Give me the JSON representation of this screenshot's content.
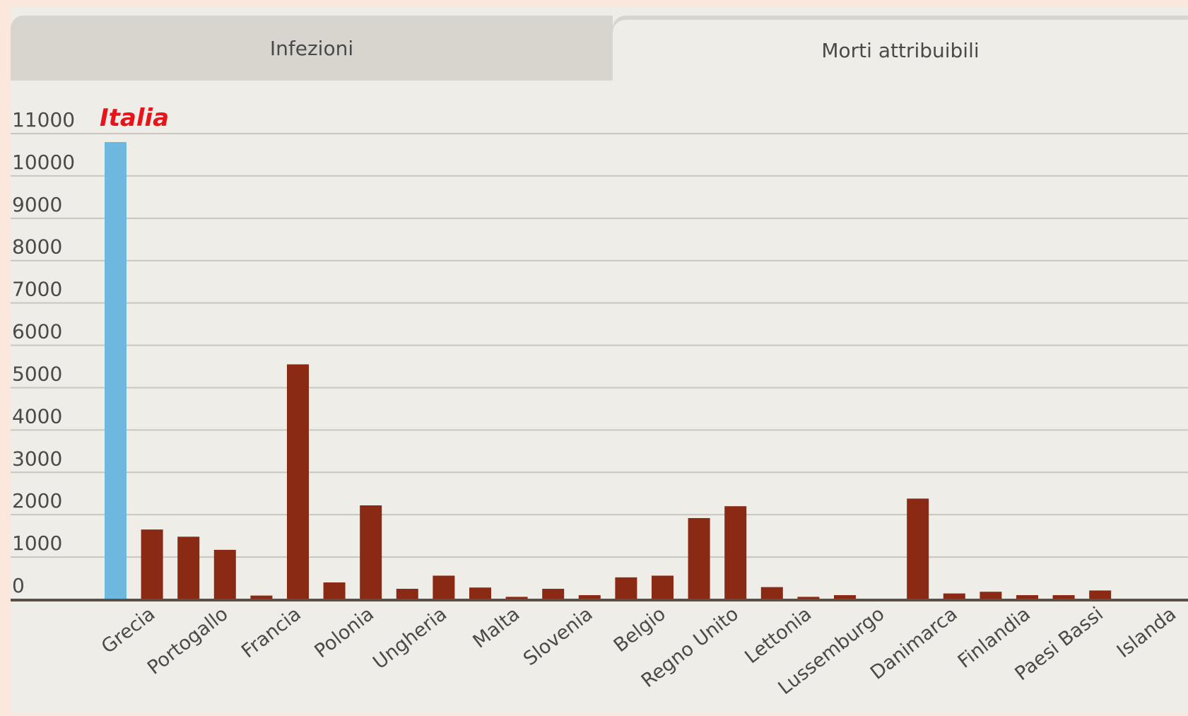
{
  "tabs": [
    {
      "label": "Infezioni",
      "active": false
    },
    {
      "label": "Morti attribuibili",
      "active": true
    }
  ],
  "colors": {
    "highlight": "#6cb8de",
    "bar": "#8b2a14",
    "highlight_label": "#e8141c",
    "grid": "#c9c6c0",
    "axis": "#5a504a",
    "text": "#4a4a4a"
  },
  "chart_data": {
    "type": "bar",
    "title": "",
    "xlabel": "",
    "ylabel": "",
    "ylim": [
      0,
      11000
    ],
    "yticks": [
      0,
      1000,
      2000,
      3000,
      4000,
      5000,
      6000,
      7000,
      8000,
      9000,
      10000,
      11000
    ],
    "grid": true,
    "highlight_label": "Italia",
    "x_tick_labels": [
      "Grecia",
      "Portogallo",
      "Francia",
      "Polonia",
      "Ungheria",
      "Malta",
      "Slovenia",
      "Belgio",
      "Regno Unito",
      "Lettonia",
      "Lussemburgo",
      "Danimarca",
      "Finlandia",
      "Paesi Bassi",
      "Islanda"
    ],
    "bars": [
      {
        "label": "Italia",
        "value": 10800,
        "highlight": true
      },
      {
        "label": "Grecia",
        "value": 1650
      },
      {
        "label": "",
        "value": 1480
      },
      {
        "label": "Portogallo",
        "value": 1170
      },
      {
        "label": "",
        "value": 90
      },
      {
        "label": "Francia",
        "value": 5550
      },
      {
        "label": "",
        "value": 400
      },
      {
        "label": "Polonia",
        "value": 2220
      },
      {
        "label": "",
        "value": 250
      },
      {
        "label": "Ungheria",
        "value": 560
      },
      {
        "label": "",
        "value": 280
      },
      {
        "label": "Malta",
        "value": 60
      },
      {
        "label": "",
        "value": 250
      },
      {
        "label": "Slovenia",
        "value": 100
      },
      {
        "label": "",
        "value": 520
      },
      {
        "label": "Belgio",
        "value": 560
      },
      {
        "label": "",
        "value": 1920
      },
      {
        "label": "Regno Unito",
        "value": 2200
      },
      {
        "label": "",
        "value": 290
      },
      {
        "label": "Lettonia",
        "value": 60
      },
      {
        "label": "",
        "value": 100
      },
      {
        "label": "Lussemburgo",
        "value": 0
      },
      {
        "label": "",
        "value": 2380
      },
      {
        "label": "Danimarca",
        "value": 140
      },
      {
        "label": "",
        "value": 180
      },
      {
        "label": "Finlandia",
        "value": 100
      },
      {
        "label": "",
        "value": 100
      },
      {
        "label": "Paesi Bassi",
        "value": 210
      },
      {
        "label": "",
        "value": 0
      },
      {
        "label": "Islanda",
        "value": 0
      }
    ]
  }
}
